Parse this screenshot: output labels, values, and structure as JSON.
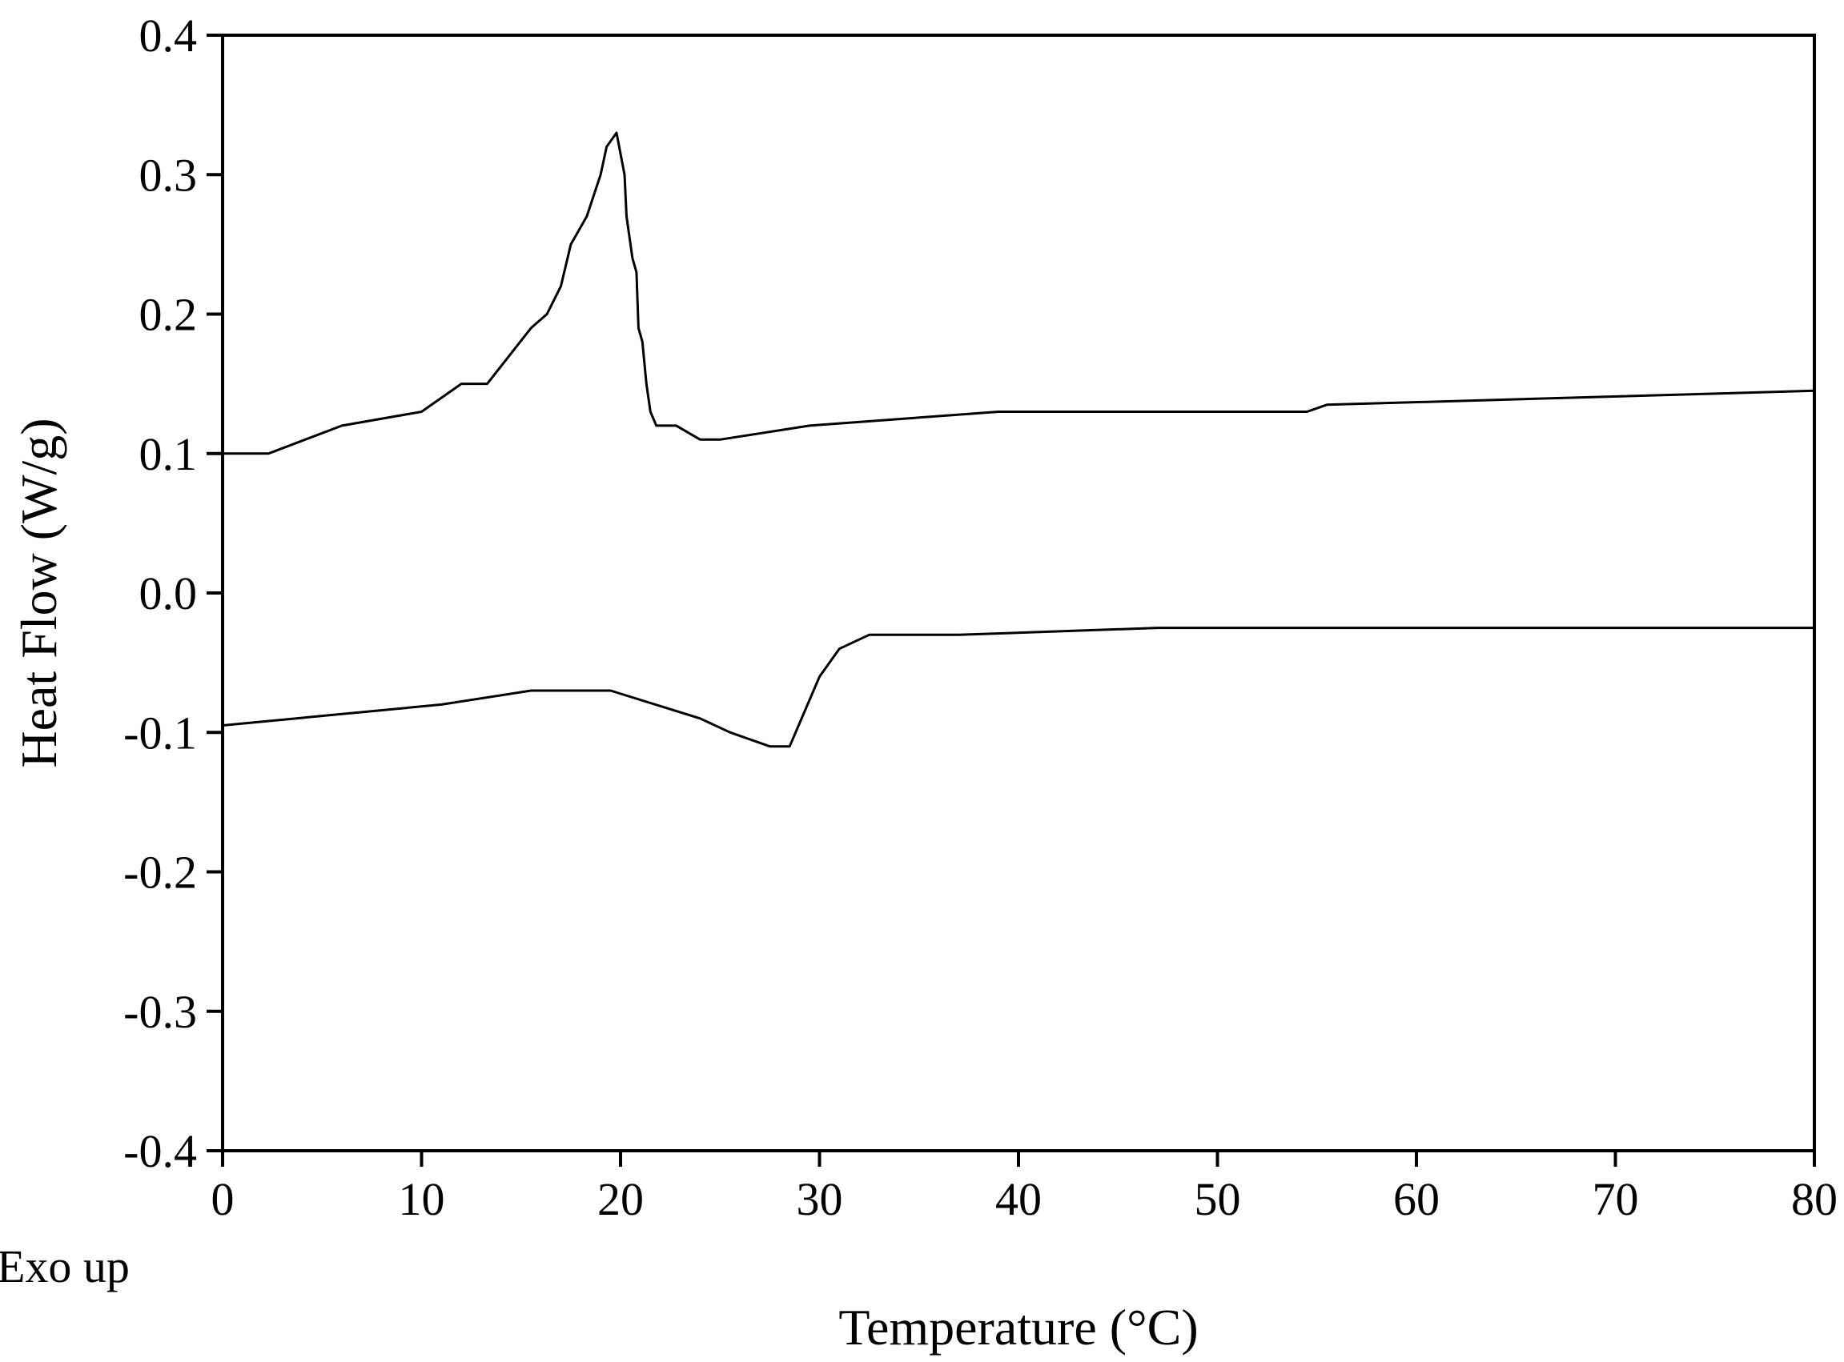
{
  "chart_data": {
    "type": "line",
    "title": "",
    "xlabel": "Temperature (°C)",
    "ylabel": "Heat Flow (W/g)",
    "xlim": [
      0,
      80
    ],
    "ylim": [
      -0.4,
      0.4
    ],
    "grid": false,
    "x_ticks": [
      0,
      10,
      20,
      30,
      40,
      50,
      60,
      70,
      80
    ],
    "x_tick_labels": [
      "0",
      "10",
      "20",
      "30",
      "40",
      "50",
      "60",
      "70",
      "80"
    ],
    "y_ticks": [
      0.4,
      0.3,
      0.2,
      0.1,
      0.0,
      -0.1,
      -0.2,
      -0.3,
      -0.4
    ],
    "y_tick_labels": [
      "0.4",
      "0.3",
      "0.2",
      "0.1",
      "0.0",
      "-0.1",
      "-0.2",
      "-0.3",
      "-0.4"
    ],
    "annotations": [
      {
        "text": "Exo up"
      }
    ],
    "series": [
      {
        "x": [
          0,
          2.3,
          6,
          10,
          12,
          13.3,
          15.5,
          16.3,
          17,
          17.5,
          18.3,
          19,
          19.3,
          19.8,
          20.2,
          20.3,
          20.6,
          20.8,
          20.9,
          21.1,
          21.3,
          21.5,
          21.8,
          22.8,
          24,
          25,
          29.5,
          39,
          54.5,
          55.5,
          80
        ],
        "y": [
          0.1,
          0.1,
          0.12,
          0.13,
          0.15,
          0.15,
          0.19,
          0.2,
          0.22,
          0.25,
          0.27,
          0.3,
          0.32,
          0.33,
          0.3,
          0.27,
          0.24,
          0.23,
          0.19,
          0.18,
          0.15,
          0.13,
          0.12,
          0.12,
          0.11,
          0.11,
          0.12,
          0.13,
          0.13,
          0.135,
          0.145
        ]
      },
      {
        "x": [
          0,
          11,
          15.5,
          19.5,
          24,
          25.5,
          27.5,
          28.5,
          30,
          30.5,
          31,
          32.5,
          37,
          47,
          80
        ],
        "y": [
          -0.095,
          -0.08,
          -0.07,
          -0.07,
          -0.09,
          -0.1,
          -0.11,
          -0.11,
          -0.06,
          -0.05,
          -0.04,
          -0.03,
          -0.03,
          -0.025,
          -0.025
        ]
      }
    ]
  }
}
